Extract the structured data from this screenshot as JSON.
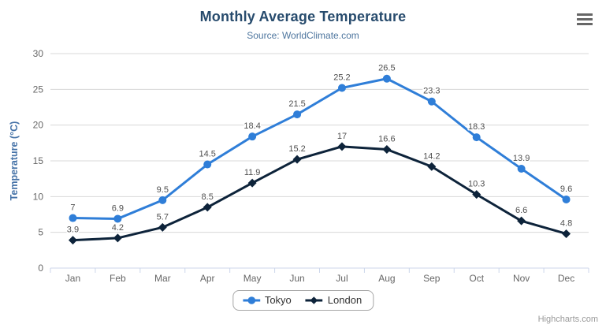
{
  "header": {
    "title": "Monthly Average Temperature",
    "subtitle": "Source: WorldClimate.com"
  },
  "credits": {
    "label": "Highcharts.com"
  },
  "palette": {
    "title": "#274b6d",
    "subtitle": "#4d759e",
    "axis_title": "#4572a7",
    "tick_label": "#666666",
    "grid_line": "#d8d8d8",
    "axis_line": "#ccd6eb",
    "data_label": "#4f4f4f",
    "legend_text": "#333333",
    "menu_icon": "#666666",
    "credits_text": "#999999"
  },
  "chart_data": {
    "type": "line",
    "title": "Monthly Average Temperature",
    "subtitle": "Source: WorldClimate.com",
    "xlabel": "",
    "ylabel": "Temperature (°C)",
    "ylim": [
      0,
      30
    ],
    "ytick_step": 5,
    "grid": true,
    "legend_position": "bottom",
    "data_labels": true,
    "categories": [
      "Jan",
      "Feb",
      "Mar",
      "Apr",
      "May",
      "Jun",
      "Jul",
      "Aug",
      "Sep",
      "Oct",
      "Nov",
      "Dec"
    ],
    "series": [
      {
        "name": "Tokyo",
        "color": "#2f7ed8",
        "marker": "circle",
        "values": [
          7,
          6.9,
          9.5,
          14.5,
          18.4,
          21.5,
          25.2,
          26.5,
          23.3,
          18.3,
          13.9,
          9.6
        ]
      },
      {
        "name": "London",
        "color": "#0d233a",
        "marker": "diamond",
        "values": [
          3.9,
          4.2,
          5.7,
          8.5,
          11.9,
          15.2,
          17,
          16.6,
          14.2,
          10.3,
          6.6,
          4.8
        ]
      }
    ]
  }
}
